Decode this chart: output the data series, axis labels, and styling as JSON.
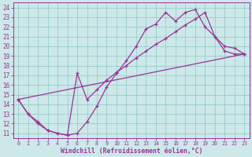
{
  "xlabel": "Windchill (Refroidissement éolien,°C)",
  "background_color": "#cce8e8",
  "line_color": "#993399",
  "grid_color": "#99cccc",
  "axis_color": "#993399",
  "tick_color": "#993399",
  "xlim": [
    -0.5,
    23.5
  ],
  "ylim": [
    10.5,
    24.5
  ],
  "xticks": [
    0,
    1,
    2,
    3,
    4,
    5,
    6,
    7,
    8,
    9,
    10,
    11,
    12,
    13,
    14,
    15,
    16,
    17,
    18,
    19,
    20,
    21,
    22,
    23
  ],
  "yticks": [
    11,
    12,
    13,
    14,
    15,
    16,
    17,
    18,
    19,
    20,
    21,
    22,
    23,
    24
  ],
  "line1_x": [
    0,
    1,
    2,
    3,
    4,
    5,
    6,
    7,
    8,
    9,
    10,
    11,
    12,
    13,
    14,
    15,
    16,
    17,
    18,
    19,
    20,
    21,
    22,
    23
  ],
  "line1_y": [
    14.5,
    13.0,
    12.2,
    11.3,
    11.0,
    10.8,
    11.0,
    12.2,
    13.8,
    15.8,
    17.2,
    18.5,
    20.0,
    21.8,
    22.3,
    23.5,
    22.6,
    23.5,
    23.8,
    22.0,
    21.0,
    20.0,
    19.8,
    19.2
  ],
  "line2_x": [
    0,
    1,
    2,
    3,
    4,
    5,
    6,
    7,
    8,
    9,
    10,
    11,
    12,
    13,
    14,
    15,
    16,
    17,
    18,
    19,
    20,
    21,
    22,
    23
  ],
  "line2_y": [
    14.5,
    13.0,
    12.0,
    11.3,
    11.0,
    10.8,
    17.2,
    14.5,
    15.5,
    16.5,
    17.3,
    18.0,
    18.8,
    19.5,
    20.2,
    20.8,
    21.5,
    22.2,
    22.8,
    23.5,
    21.0,
    19.5,
    19.2,
    19.2
  ],
  "line3_x": [
    0,
    23
  ],
  "line3_y": [
    14.5,
    19.2
  ]
}
